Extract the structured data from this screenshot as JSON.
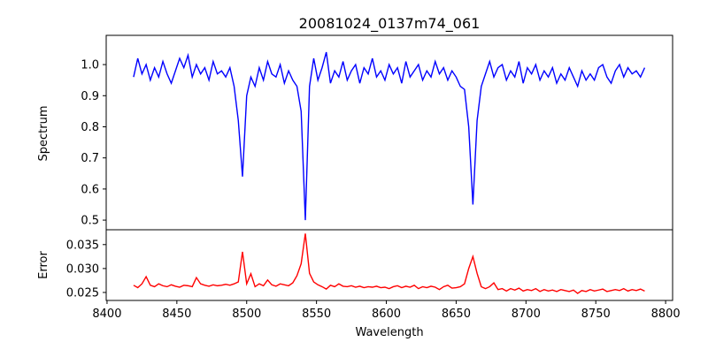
{
  "chart_data": [
    {
      "type": "line",
      "title": "20081024_0137m74_061",
      "xlabel": "",
      "ylabel": "Spectrum",
      "xlim": [
        8399.4,
        8805
      ],
      "ylim": [
        0.469,
        1.094
      ],
      "yticks": [
        "0.5",
        "0.6",
        "0.7",
        "0.8",
        "0.9",
        "1.0"
      ],
      "ytick_values": [
        0.5,
        0.6,
        0.7,
        0.8,
        0.9,
        1.0
      ],
      "color": "#0000ff",
      "x_start": 8419,
      "x_step": 3,
      "values": [
        0.96,
        1.02,
        0.97,
        1.0,
        0.95,
        0.99,
        0.96,
        1.01,
        0.97,
        0.94,
        0.98,
        1.02,
        0.99,
        1.03,
        0.96,
        1.0,
        0.97,
        0.99,
        0.95,
        1.01,
        0.97,
        0.98,
        0.96,
        0.99,
        0.93,
        0.82,
        0.64,
        0.9,
        0.96,
        0.93,
        0.99,
        0.95,
        1.01,
        0.97,
        0.96,
        1.0,
        0.94,
        0.98,
        0.95,
        0.93,
        0.85,
        0.5,
        0.93,
        1.02,
        0.95,
        0.99,
        1.04,
        0.94,
        0.98,
        0.96,
        1.01,
        0.95,
        0.98,
        1.0,
        0.94,
        0.99,
        0.97,
        1.02,
        0.96,
        0.98,
        0.95,
        1.0,
        0.97,
        0.99,
        0.94,
        1.01,
        0.96,
        0.98,
        1.0,
        0.95,
        0.98,
        0.96,
        1.01,
        0.97,
        0.99,
        0.95,
        0.98,
        0.96,
        0.93,
        0.92,
        0.8,
        0.55,
        0.82,
        0.93,
        0.97,
        1.01,
        0.96,
        0.99,
        1.0,
        0.95,
        0.98,
        0.96,
        1.01,
        0.94,
        0.99,
        0.97,
        1.0,
        0.95,
        0.98,
        0.96,
        0.99,
        0.94,
        0.97,
        0.95,
        0.99,
        0.96,
        0.93,
        0.98,
        0.95,
        0.97,
        0.95,
        0.99,
        1.0,
        0.96,
        0.94,
        0.98,
        1.0,
        0.96,
        0.99,
        0.97,
        0.98,
        0.96,
        0.99
      ]
    },
    {
      "type": "line",
      "xlabel": "Wavelength",
      "ylabel": "Error",
      "xlim": [
        8399.4,
        8805
      ],
      "ylim": [
        0.02333,
        0.0381
      ],
      "xticks": [
        "8400",
        "8450",
        "8500",
        "8550",
        "8600",
        "8650",
        "8700",
        "8750",
        "8800"
      ],
      "xtick_values": [
        8400,
        8450,
        8500,
        8550,
        8600,
        8650,
        8700,
        8750,
        8800
      ],
      "yticks": [
        "0.025",
        "0.030",
        "0.035"
      ],
      "ytick_values": [
        0.025,
        0.03,
        0.035
      ],
      "color": "#ff0000",
      "x_start": 8419,
      "x_step": 3,
      "values": [
        0.0265,
        0.026,
        0.0268,
        0.0283,
        0.0265,
        0.0262,
        0.0268,
        0.0264,
        0.0262,
        0.0266,
        0.0263,
        0.0261,
        0.0265,
        0.0264,
        0.0262,
        0.0281,
        0.0268,
        0.0265,
        0.0263,
        0.0266,
        0.0264,
        0.0265,
        0.0267,
        0.0265,
        0.0268,
        0.0272,
        0.0335,
        0.0268,
        0.0289,
        0.0262,
        0.0268,
        0.0264,
        0.0276,
        0.0266,
        0.0263,
        0.0268,
        0.0266,
        0.0264,
        0.027,
        0.0285,
        0.031,
        0.0373,
        0.029,
        0.0272,
        0.0266,
        0.0262,
        0.0257,
        0.0265,
        0.0262,
        0.0268,
        0.0263,
        0.0262,
        0.0264,
        0.0261,
        0.0263,
        0.026,
        0.0262,
        0.0261,
        0.0263,
        0.026,
        0.0261,
        0.0258,
        0.0262,
        0.0264,
        0.026,
        0.0263,
        0.0261,
        0.0265,
        0.0258,
        0.0262,
        0.026,
        0.0263,
        0.0261,
        0.0256,
        0.0262,
        0.0265,
        0.0259,
        0.026,
        0.0262,
        0.0268,
        0.03,
        0.0325,
        0.029,
        0.0262,
        0.0258,
        0.0262,
        0.027,
        0.0256,
        0.0258,
        0.0253,
        0.0258,
        0.0255,
        0.0259,
        0.0253,
        0.0256,
        0.0254,
        0.0258,
        0.0252,
        0.0256,
        0.0253,
        0.0255,
        0.0252,
        0.0256,
        0.0254,
        0.0252,
        0.0255,
        0.0248,
        0.0254,
        0.0252,
        0.0256,
        0.0253,
        0.0255,
        0.0257,
        0.0252,
        0.0254,
        0.0256,
        0.0254,
        0.0258,
        0.0253,
        0.0256,
        0.0254,
        0.0257,
        0.0253
      ]
    }
  ]
}
